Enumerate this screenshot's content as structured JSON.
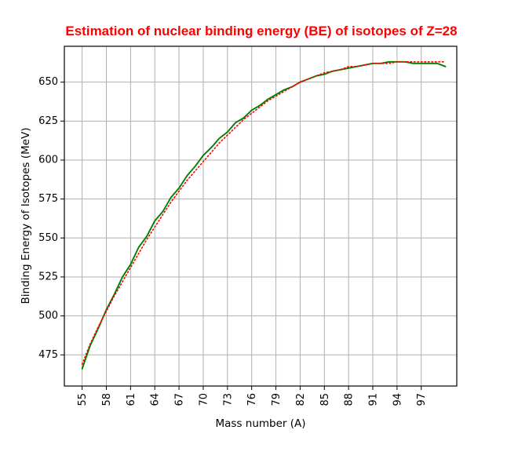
{
  "chart_data": {
    "type": "line",
    "title": "Estimation of nuclear binding energy (BE) of isotopes of Z=28",
    "xlabel": "Mass number (A)",
    "ylabel": "Binding Energy of Isotopes (MeV)",
    "xlim": [
      52.8,
      101.4
    ],
    "ylim": [
      455,
      673
    ],
    "xticks": [
      55,
      58,
      61,
      64,
      67,
      70,
      73,
      76,
      79,
      82,
      85,
      88,
      91,
      94,
      97
    ],
    "yticks": [
      475,
      500,
      525,
      550,
      575,
      600,
      625,
      650
    ],
    "grid": true,
    "colors": {
      "series_solid": "#008000",
      "series_dotted": "#ff0000",
      "title": "#ff0000",
      "grid": "#b0b0b0"
    },
    "x": [
      55,
      56,
      57,
      58,
      59,
      60,
      61,
      62,
      63,
      64,
      65,
      66,
      67,
      68,
      69,
      70,
      71,
      72,
      73,
      74,
      75,
      76,
      77,
      78,
      79,
      80,
      81,
      82,
      83,
      84,
      85,
      86,
      87,
      88,
      89,
      90,
      91,
      92,
      93,
      94,
      95,
      96,
      97,
      98,
      99,
      100
    ],
    "series": [
      {
        "style": "solid",
        "values": [
          466,
          481,
          492,
          504,
          514,
          525,
          533,
          544,
          551,
          561,
          567,
          576,
          582,
          590,
          596,
          603,
          608,
          614,
          618,
          624,
          627,
          632,
          635,
          639,
          642,
          645,
          647,
          650,
          652,
          654,
          655,
          657,
          658,
          659,
          660,
          661,
          662,
          662,
          663,
          663,
          663,
          662,
          662,
          662,
          662,
          660
        ]
      },
      {
        "style": "dotted",
        "values": [
          469,
          482,
          493,
          503,
          513,
          522,
          531,
          540,
          549,
          557,
          565,
          573,
          580,
          587,
          593,
          599,
          605,
          611,
          616,
          621,
          626,
          630,
          634,
          638,
          641,
          644,
          647,
          650,
          652,
          654,
          656,
          657,
          658,
          660,
          660,
          661,
          662,
          662,
          662,
          663,
          663,
          663,
          663,
          663,
          663,
          663
        ]
      }
    ]
  }
}
